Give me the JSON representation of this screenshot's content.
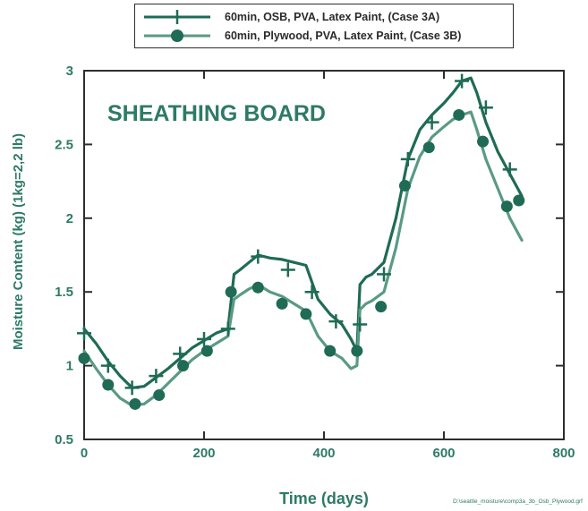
{
  "colors": {
    "series_a": "#1f6b55",
    "series_b": "#5a9a84",
    "axis_text": "#2e7a66",
    "frame": "#2d2d2d"
  },
  "chart_data": {
    "type": "line",
    "title": "SHEATHING BOARD",
    "xlabel": "Time (days)",
    "ylabel": "Moisture Content (kg) (1kg=2,2 lb)",
    "xlim": [
      0,
      800
    ],
    "ylim": [
      0.5,
      3
    ],
    "xticks": [
      0,
      200,
      400,
      600,
      800
    ],
    "yticks": [
      0.5,
      1,
      1.5,
      2,
      2.5,
      3
    ],
    "ytick_labels": [
      "0.5",
      "1",
      "1.5",
      "2",
      "2.5",
      "3"
    ],
    "grid": false,
    "legend_position": "top-center",
    "footnote": "D:\\seattle_moisture\\comp3a_3b_Osb_Plywood.grf",
    "series": [
      {
        "name": "60min, OSB, PVA, Latex Paint, (Case 3A)",
        "marker": "plus",
        "x": [
          0,
          20,
          40,
          60,
          80,
          100,
          120,
          140,
          160,
          180,
          200,
          220,
          240,
          250,
          260,
          275,
          290,
          310,
          330,
          350,
          370,
          390,
          410,
          430,
          445,
          455,
          460,
          470,
          480,
          500,
          520,
          540,
          560,
          580,
          600,
          615,
          630,
          645,
          655,
          670,
          690,
          710,
          730
        ],
        "y": [
          1.25,
          1.15,
          1.03,
          0.93,
          0.85,
          0.86,
          0.92,
          0.98,
          1.05,
          1.12,
          1.17,
          1.22,
          1.25,
          1.62,
          1.65,
          1.7,
          1.75,
          1.73,
          1.72,
          1.7,
          1.68,
          1.45,
          1.35,
          1.28,
          1.18,
          1.1,
          1.55,
          1.6,
          1.62,
          1.7,
          2.0,
          2.4,
          2.6,
          2.7,
          2.78,
          2.85,
          2.93,
          2.95,
          2.85,
          2.65,
          2.45,
          2.3,
          2.15
        ],
        "marker_x": [
          0,
          40,
          80,
          120,
          160,
          200,
          240,
          290,
          340,
          380,
          420,
          460,
          500,
          540,
          580,
          630,
          670,
          710
        ],
        "marker_y": [
          1.22,
          1.0,
          0.85,
          0.93,
          1.08,
          1.18,
          1.25,
          1.74,
          1.65,
          1.5,
          1.3,
          1.28,
          1.62,
          2.4,
          2.65,
          2.93,
          2.75,
          2.33
        ]
      },
      {
        "name": "60min, Plywood, PVA, Latex Paint, (Case 3B)",
        "marker": "circle",
        "x": [
          0,
          20,
          40,
          60,
          80,
          100,
          120,
          140,
          160,
          180,
          200,
          220,
          240,
          250,
          260,
          275,
          290,
          310,
          330,
          350,
          370,
          390,
          410,
          430,
          445,
          455,
          460,
          470,
          480,
          500,
          520,
          540,
          560,
          580,
          600,
          615,
          630,
          645,
          655,
          670,
          690,
          710,
          730
        ],
        "y": [
          1.1,
          0.98,
          0.87,
          0.78,
          0.73,
          0.74,
          0.8,
          0.88,
          0.96,
          1.04,
          1.1,
          1.15,
          1.2,
          1.45,
          1.48,
          1.52,
          1.55,
          1.5,
          1.47,
          1.42,
          1.37,
          1.2,
          1.1,
          1.05,
          0.98,
          1.0,
          1.38,
          1.42,
          1.44,
          1.5,
          1.8,
          2.2,
          2.42,
          2.55,
          2.62,
          2.67,
          2.7,
          2.72,
          2.6,
          2.4,
          2.2,
          2.0,
          1.85
        ],
        "marker_x": [
          0,
          40,
          85,
          125,
          165,
          205,
          245,
          290,
          330,
          370,
          410,
          455,
          495,
          535,
          575,
          625,
          665,
          705,
          725
        ],
        "marker_y": [
          1.05,
          0.87,
          0.74,
          0.8,
          1.0,
          1.1,
          1.5,
          1.53,
          1.42,
          1.35,
          1.1,
          1.1,
          1.4,
          2.22,
          2.48,
          2.7,
          2.52,
          2.08,
          2.12
        ]
      }
    ]
  }
}
